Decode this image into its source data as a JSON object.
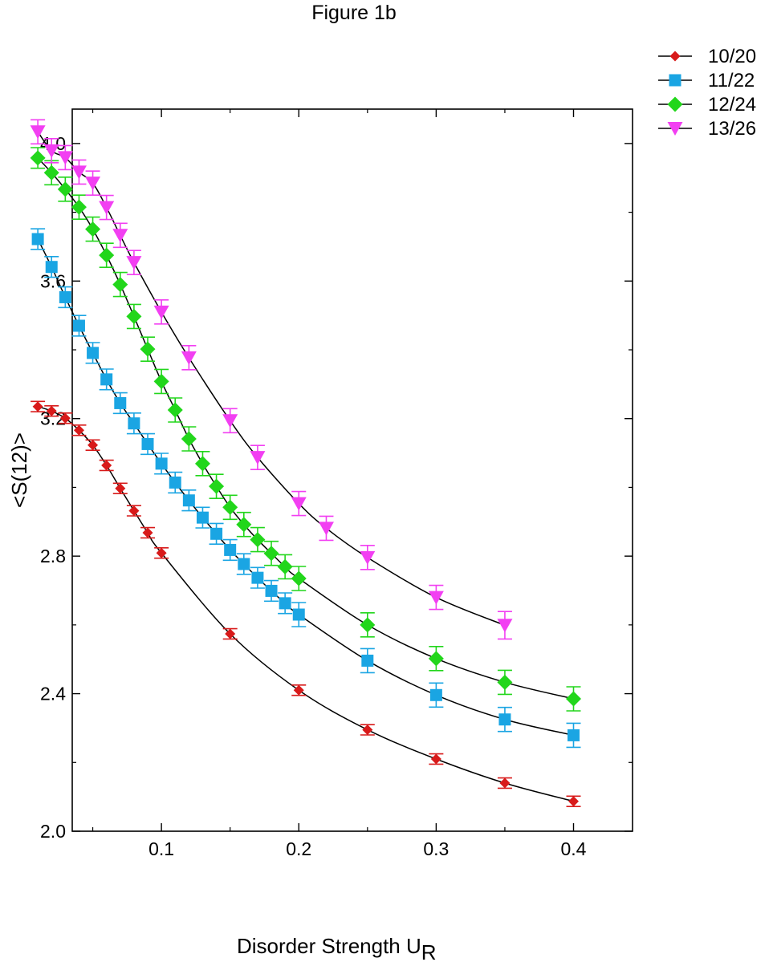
{
  "chart_data": {
    "type": "scatter",
    "title": "Figure 1b",
    "xlabel": "Disorder Strength U",
    "xlabel_subscript": "R",
    "ylabel": "<S(12)>",
    "xlim": [
      0.0,
      0.42
    ],
    "ylim": [
      2.0,
      4.1
    ],
    "xticks": [
      0.1,
      0.2,
      0.3,
      0.4
    ],
    "xtick_labels": [
      "0.1",
      "0.2",
      "0.3",
      "0.4"
    ],
    "yticks": [
      2.0,
      2.4,
      2.8,
      3.2,
      3.6,
      4.0
    ],
    "ytick_labels": [
      "2.0",
      "2.4",
      "2.8",
      "3.2",
      "3.6",
      "4.0"
    ],
    "grid": false,
    "legend_position": "top-right, outside plot",
    "lines_connect_points": true,
    "series": [
      {
        "name": "10/20",
        "color": "#d81a1a",
        "marker": "small-diamond",
        "x": [
          0.01,
          0.02,
          0.03,
          0.04,
          0.05,
          0.06,
          0.07,
          0.08,
          0.09,
          0.1,
          0.15,
          0.2,
          0.25,
          0.3,
          0.35,
          0.4
        ],
        "y": [
          3.235,
          3.222,
          3.201,
          3.166,
          3.123,
          3.064,
          2.997,
          2.932,
          2.868,
          2.809,
          2.574,
          2.41,
          2.295,
          2.21,
          2.14,
          2.087
        ],
        "err": [
          0.015,
          0.015,
          0.015,
          0.015,
          0.015,
          0.015,
          0.015,
          0.015,
          0.015,
          0.015,
          0.015,
          0.015,
          0.015,
          0.015,
          0.015,
          0.015
        ]
      },
      {
        "name": "11/22",
        "color": "#1aa5e3",
        "marker": "square",
        "x": [
          0.01,
          0.02,
          0.03,
          0.04,
          0.05,
          0.06,
          0.07,
          0.08,
          0.09,
          0.1,
          0.11,
          0.12,
          0.13,
          0.14,
          0.15,
          0.16,
          0.17,
          0.18,
          0.19,
          0.2,
          0.25,
          0.3,
          0.35,
          0.4
        ],
        "y": [
          3.722,
          3.641,
          3.553,
          3.47,
          3.391,
          3.314,
          3.245,
          3.186,
          3.126,
          3.069,
          3.014,
          2.962,
          2.912,
          2.865,
          2.818,
          2.777,
          2.737,
          2.699,
          2.663,
          2.63,
          2.496,
          2.396,
          2.325,
          2.279
        ],
        "err": [
          0.03,
          0.03,
          0.03,
          0.03,
          0.03,
          0.03,
          0.03,
          0.03,
          0.03,
          0.03,
          0.03,
          0.03,
          0.03,
          0.03,
          0.03,
          0.03,
          0.03,
          0.03,
          0.03,
          0.035,
          0.035,
          0.035,
          0.035,
          0.035
        ]
      },
      {
        "name": "12/24",
        "color": "#22d61b",
        "marker": "diamond",
        "x": [
          0.01,
          0.02,
          0.03,
          0.04,
          0.05,
          0.06,
          0.07,
          0.08,
          0.09,
          0.1,
          0.11,
          0.12,
          0.13,
          0.14,
          0.15,
          0.16,
          0.17,
          0.18,
          0.19,
          0.2,
          0.25,
          0.3,
          0.35,
          0.4
        ],
        "y": [
          3.958,
          3.915,
          3.867,
          3.815,
          3.751,
          3.675,
          3.59,
          3.497,
          3.402,
          3.308,
          3.225,
          3.141,
          3.069,
          3.003,
          2.942,
          2.892,
          2.848,
          2.808,
          2.769,
          2.735,
          2.6,
          2.502,
          2.433,
          2.385
        ],
        "err": [
          0.03,
          0.035,
          0.035,
          0.035,
          0.035,
          0.035,
          0.035,
          0.035,
          0.035,
          0.035,
          0.035,
          0.035,
          0.035,
          0.035,
          0.035,
          0.035,
          0.035,
          0.035,
          0.035,
          0.035,
          0.035,
          0.035,
          0.035,
          0.035
        ]
      },
      {
        "name": "13/26",
        "color": "#f23ff2",
        "marker": "triangle-down",
        "x": [
          0.01,
          0.02,
          0.03,
          0.04,
          0.05,
          0.06,
          0.07,
          0.08,
          0.1,
          0.12,
          0.15,
          0.17,
          0.2,
          0.22,
          0.25,
          0.3,
          0.35
        ],
        "y": [
          4.034,
          3.979,
          3.959,
          3.917,
          3.885,
          3.814,
          3.733,
          3.654,
          3.51,
          3.377,
          3.194,
          3.087,
          2.953,
          2.881,
          2.796,
          2.68,
          2.599
        ],
        "err": [
          0.035,
          0.035,
          0.035,
          0.035,
          0.035,
          0.035,
          0.035,
          0.035,
          0.035,
          0.035,
          0.035,
          0.035,
          0.035,
          0.035,
          0.035,
          0.035,
          0.04
        ]
      }
    ]
  }
}
